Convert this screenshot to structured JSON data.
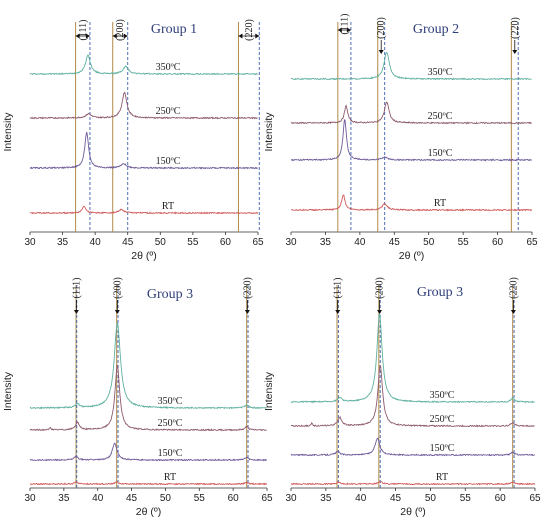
{
  "chart_data": [
    {
      "type": "line",
      "title": "Group 1",
      "xlabel": "2θ (º)",
      "ylabel": "Intensity",
      "xlim": [
        30,
        65
      ],
      "xticks": [
        30,
        35,
        40,
        45,
        50,
        55,
        60,
        65
      ],
      "peaks": [
        {
          "label": "(111)",
          "solid": 37.0,
          "dashed": 39.2
        },
        {
          "label": "(200)",
          "solid": 42.7,
          "dashed": 45.0
        },
        {
          "label": "(220)",
          "solid": 62.0,
          "dashed": 65.2
        }
      ],
      "series": [
        {
          "name": "350ºC",
          "color": "#5fb0a0",
          "offset": 3,
          "peaks": [
            [
              38.9,
              0.55,
              0.45
            ],
            [
              44.7,
              0.22,
              0.5
            ]
          ]
        },
        {
          "name": "250ºC",
          "color": "#8d5a6e",
          "offset": 2,
          "peaks": [
            [
              39.0,
              0.12,
              0.5
            ],
            [
              44.5,
              0.75,
              0.45
            ]
          ]
        },
        {
          "name": "150ºC",
          "color": "#6e5a9a",
          "offset": 1,
          "peaks": [
            [
              38.7,
              1.05,
              0.35
            ],
            [
              44.4,
              0.12,
              0.5
            ]
          ]
        },
        {
          "name": "RT",
          "color": "#d05a5a",
          "offset": 0,
          "peaks": [
            [
              38.3,
              0.2,
              0.35
            ],
            [
              44.0,
              0.1,
              0.5
            ]
          ]
        }
      ]
    },
    {
      "type": "line",
      "title": "Group 2",
      "xlabel": "2θ (º)",
      "ylabel": "Intensity",
      "xlim": [
        30,
        65
      ],
      "xticks": [
        30,
        35,
        40,
        45,
        50,
        55,
        60,
        65
      ],
      "peaks": [
        {
          "label": "(111)",
          "solid": 36.8,
          "dashed": 38.7
        },
        {
          "label": "(200)",
          "solid": 42.6,
          "dashed": 43.6
        },
        {
          "label": "(220)",
          "solid": 62.0,
          "dashed": 63.0
        }
      ],
      "series": [
        {
          "name": "350ºC",
          "color": "#5fb0a0",
          "offset": 3,
          "peaks": [
            [
              43.9,
              0.8,
              0.45
            ]
          ]
        },
        {
          "name": "250ºC",
          "color": "#8d5a6e",
          "offset": 2,
          "peaks": [
            [
              38.0,
              0.5,
              0.3
            ],
            [
              43.9,
              0.62,
              0.4
            ]
          ]
        },
        {
          "name": "150ºC",
          "color": "#6e5a9a",
          "offset": 1,
          "peaks": [
            [
              37.8,
              1.2,
              0.3
            ],
            [
              43.6,
              0.08,
              0.5
            ]
          ]
        },
        {
          "name": "RT",
          "color": "#d05a5a",
          "offset": 0,
          "peaks": [
            [
              37.6,
              0.45,
              0.3
            ],
            [
              43.6,
              0.18,
              0.45
            ]
          ]
        }
      ]
    },
    {
      "type": "line",
      "title": "Group 3",
      "xlabel": "2θ (º)",
      "ylabel": "Intensity",
      "xlim": [
        30,
        65
      ],
      "xticks": [
        30,
        35,
        40,
        45,
        50,
        55,
        60,
        65
      ],
      "peaks": [
        {
          "label": "(111)",
          "solid": 36.8,
          "dashed": 36.9
        },
        {
          "label": "(200)",
          "solid": 42.8,
          "dashed": 43.0
        },
        {
          "label": "(220)",
          "solid": 62.0,
          "dashed": 62.2
        }
      ],
      "series": [
        {
          "name": "350ºC",
          "color": "#5fb0a0",
          "offset": 3,
          "peaks": [
            [
              37.0,
              0.12,
              0.35
            ],
            [
              42.9,
              2.5,
              0.55
            ],
            [
              62.0,
              0.1,
              0.3
            ]
          ]
        },
        {
          "name": "250ºC",
          "color": "#8d5a6e",
          "offset": 2,
          "peaks": [
            [
              33.0,
              0.08,
              0.12
            ],
            [
              37.0,
              0.22,
              0.35
            ],
            [
              42.9,
              1.9,
              0.42
            ],
            [
              62.0,
              0.1,
              0.3
            ]
          ]
        },
        {
          "name": "150ºC",
          "color": "#6e5a9a",
          "offset": 1,
          "peaks": [
            [
              36.8,
              0.1,
              0.35
            ],
            [
              42.5,
              0.5,
              0.4
            ],
            [
              62.0,
              0.08,
              0.3
            ]
          ]
        },
        {
          "name": "RT",
          "color": "#d05a5a",
          "offset": 0,
          "peaks": [
            [
              36.8,
              0.06,
              0.3
            ],
            [
              42.8,
              0.07,
              0.3
            ],
            [
              62.0,
              0.05,
              0.3
            ]
          ]
        }
      ]
    },
    {
      "type": "line",
      "title": "Group 3",
      "xlabel": "2θ (º)",
      "ylabel": "Intensity",
      "xlim": [
        30,
        65
      ],
      "xticks": [
        30,
        35,
        40,
        45,
        50,
        55,
        60,
        65
      ],
      "peaks": [
        {
          "label": "(111)",
          "solid": 36.6,
          "dashed": 36.8
        },
        {
          "label": "(200)",
          "solid": 42.6,
          "dashed": 42.8
        },
        {
          "label": "(220)",
          "solid": 61.8,
          "dashed": 62.0
        }
      ],
      "series": [
        {
          "name": "350ºC",
          "color": "#5fb0a0",
          "offset": 3,
          "peaks": [
            [
              37.0,
              0.12,
              0.35
            ],
            [
              42.7,
              2.6,
              0.45
            ],
            [
              61.8,
              0.12,
              0.3
            ]
          ]
        },
        {
          "name": "250ºC",
          "color": "#8d5a6e",
          "offset": 2,
          "peaks": [
            [
              33.0,
              0.08,
              0.12
            ],
            [
              37.0,
              0.25,
              0.35
            ],
            [
              42.8,
              1.8,
              0.4
            ],
            [
              61.8,
              0.1,
              0.3
            ]
          ]
        },
        {
          "name": "150ºC",
          "color": "#6e5a9a",
          "offset": 1,
          "peaks": [
            [
              36.7,
              0.1,
              0.35
            ],
            [
              42.4,
              0.5,
              0.4
            ],
            [
              61.8,
              0.08,
              0.3
            ]
          ]
        },
        {
          "name": "RT",
          "color": "#d05a5a",
          "offset": 0,
          "peaks": [
            [
              36.8,
              0.06,
              0.3
            ],
            [
              42.8,
              0.08,
              0.3
            ],
            [
              61.8,
              0.05,
              0.3
            ]
          ]
        }
      ]
    }
  ]
}
